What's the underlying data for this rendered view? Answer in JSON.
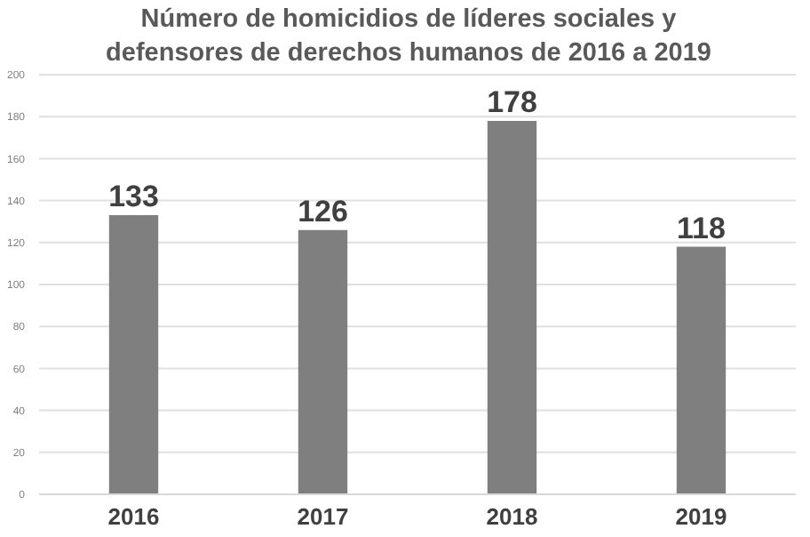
{
  "chart_data": {
    "type": "bar",
    "title": "Número de homicidios de líderes sociales y defensores de derechos humanos de 2016 a 2019",
    "categories": [
      "2016",
      "2017",
      "2018",
      "2019"
    ],
    "values": [
      133,
      126,
      178,
      118
    ],
    "color": "#7f7f7f",
    "ylim": [
      0,
      200
    ],
    "yticks": [
      0,
      20,
      40,
      60,
      80,
      100,
      120,
      140,
      160,
      180,
      200
    ],
    "grid": "y",
    "data_labels": true
  }
}
